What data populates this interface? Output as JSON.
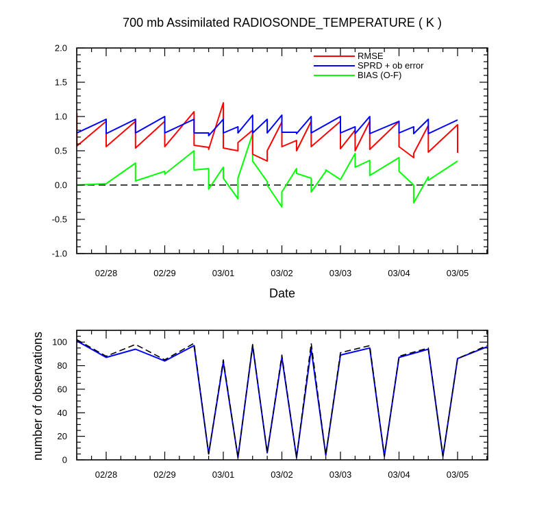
{
  "chart_data": [
    {
      "type": "line",
      "title": "700 mb Assimilated RADIOSONDE_TEMPERATURE ( K )",
      "xlabel": "Date",
      "ylabel": "",
      "x_tick_labels": [
        "02/28",
        "02/29",
        "03/01",
        "03/02",
        "03/03",
        "03/04",
        "03/05"
      ],
      "ylim": [
        -1.0,
        2.0
      ],
      "y_ticks": [
        "-1.0",
        "-0.5",
        "0.0",
        "0.5",
        "1.0",
        "1.5",
        "2.0"
      ],
      "reference_line": {
        "y": 0.0,
        "style": "dashed",
        "color": "#000000"
      },
      "legend_position": "top-right",
      "series": [
        {
          "name": "RMSE",
          "color": "#ff0000",
          "points": [
            [
              -0.5,
              1.05
            ],
            [
              -0.5,
              0.57
            ],
            [
              0.0,
              0.93
            ],
            [
              0.0,
              0.56
            ],
            [
              0.5,
              0.93
            ],
            [
              0.5,
              0.54
            ],
            [
              1.0,
              0.93
            ],
            [
              1.0,
              0.56
            ],
            [
              1.5,
              1.07
            ],
            [
              1.5,
              0.58
            ],
            [
              1.75,
              0.55
            ],
            [
              1.75,
              0.52
            ],
            [
              2.0,
              1.2
            ],
            [
              2.0,
              0.54
            ],
            [
              2.25,
              0.5
            ],
            [
              2.25,
              0.62
            ],
            [
              2.5,
              0.8
            ],
            [
              2.5,
              0.45
            ],
            [
              2.75,
              0.35
            ],
            [
              2.75,
              0.5
            ],
            [
              3.0,
              0.92
            ],
            [
              3.0,
              0.56
            ],
            [
              3.25,
              0.65
            ],
            [
              3.25,
              0.5
            ],
            [
              3.5,
              0.93
            ],
            [
              3.5,
              0.56
            ],
            [
              4.0,
              0.93
            ],
            [
              4.0,
              0.53
            ],
            [
              4.25,
              0.8
            ],
            [
              4.25,
              0.5
            ],
            [
              4.5,
              0.93
            ],
            [
              4.5,
              0.52
            ],
            [
              5.0,
              0.93
            ],
            [
              5.0,
              0.56
            ],
            [
              5.25,
              0.4
            ],
            [
              5.25,
              0.46
            ],
            [
              5.5,
              0.87
            ],
            [
              5.5,
              0.48
            ],
            [
              6.0,
              0.88
            ],
            [
              6.0,
              0.47
            ]
          ]
        },
        {
          "name": "SPRD + ob error",
          "color": "#0000ff",
          "points": [
            [
              -0.5,
              0.76
            ],
            [
              0.0,
              0.96
            ],
            [
              0.0,
              0.75
            ],
            [
              0.5,
              0.96
            ],
            [
              0.5,
              0.76
            ],
            [
              1.0,
              1.0
            ],
            [
              1.0,
              0.76
            ],
            [
              1.5,
              0.96
            ],
            [
              1.5,
              0.76
            ],
            [
              1.75,
              0.76
            ],
            [
              1.75,
              0.72
            ],
            [
              2.0,
              0.96
            ],
            [
              2.0,
              0.76
            ],
            [
              2.25,
              0.85
            ],
            [
              2.25,
              0.76
            ],
            [
              2.5,
              1.02
            ],
            [
              2.5,
              0.76
            ],
            [
              2.75,
              0.96
            ],
            [
              2.75,
              0.76
            ],
            [
              3.0,
              1.02
            ],
            [
              3.0,
              0.77
            ],
            [
              3.25,
              0.77
            ],
            [
              3.25,
              0.75
            ],
            [
              3.5,
              1.0
            ],
            [
              3.5,
              0.76
            ],
            [
              4.0,
              1.0
            ],
            [
              4.0,
              0.76
            ],
            [
              4.25,
              0.85
            ],
            [
              4.25,
              0.75
            ],
            [
              4.5,
              1.0
            ],
            [
              4.5,
              0.75
            ],
            [
              5.0,
              0.93
            ],
            [
              5.0,
              0.76
            ],
            [
              5.25,
              0.85
            ],
            [
              5.25,
              0.75
            ],
            [
              5.5,
              0.96
            ],
            [
              5.5,
              0.75
            ],
            [
              6.0,
              0.95
            ]
          ]
        },
        {
          "name": "BIAS (O-F)",
          "color": "#00ff00",
          "points": [
            [
              -0.5,
              0.0
            ],
            [
              0.0,
              0.02
            ],
            [
              0.5,
              0.32
            ],
            [
              0.5,
              0.06
            ],
            [
              1.0,
              0.2
            ],
            [
              1.0,
              0.16
            ],
            [
              1.5,
              0.5
            ],
            [
              1.5,
              0.22
            ],
            [
              1.75,
              0.24
            ],
            [
              1.75,
              -0.06
            ],
            [
              2.0,
              0.26
            ],
            [
              2.0,
              0.1
            ],
            [
              2.25,
              -0.2
            ],
            [
              2.25,
              0.1
            ],
            [
              2.5,
              0.75
            ],
            [
              2.5,
              0.35
            ],
            [
              2.75,
              0.05
            ],
            [
              2.75,
              0.0
            ],
            [
              3.0,
              -0.32
            ],
            [
              3.0,
              -0.1
            ],
            [
              3.25,
              0.24
            ],
            [
              3.25,
              0.17
            ],
            [
              3.5,
              0.1
            ],
            [
              3.5,
              -0.1
            ],
            [
              3.75,
              0.2
            ],
            [
              3.75,
              0.22
            ],
            [
              4.0,
              0.08
            ],
            [
              4.25,
              0.46
            ],
            [
              4.25,
              0.26
            ],
            [
              4.5,
              0.36
            ],
            [
              4.5,
              0.14
            ],
            [
              5.0,
              0.4
            ],
            [
              5.0,
              0.2
            ],
            [
              5.25,
              0.0
            ],
            [
              5.25,
              -0.26
            ],
            [
              5.5,
              0.12
            ],
            [
              5.5,
              0.07
            ],
            [
              6.0,
              0.35
            ]
          ]
        }
      ]
    },
    {
      "type": "line",
      "title": "",
      "xlabel": "",
      "ylabel": "number of observations",
      "x_tick_labels": [
        "02/28",
        "02/29",
        "03/01",
        "03/02",
        "03/03",
        "03/04",
        "03/05"
      ],
      "ylim": [
        0,
        110
      ],
      "y_ticks": [
        "0",
        "20",
        "40",
        "60",
        "80",
        "100"
      ],
      "series": [
        {
          "color": "#0000ff",
          "style": "solid",
          "points": [
            [
              -0.5,
              101
            ],
            [
              0.0,
              87
            ],
            [
              0.5,
              94
            ],
            [
              1.0,
              84
            ],
            [
              1.5,
              97
            ],
            [
              1.75,
              5
            ],
            [
              2.0,
              83
            ],
            [
              2.25,
              2
            ],
            [
              2.5,
              97
            ],
            [
              2.75,
              6
            ],
            [
              3.0,
              87
            ],
            [
              3.25,
              2
            ],
            [
              3.5,
              94
            ],
            [
              3.75,
              4
            ],
            [
              4.0,
              89
            ],
            [
              4.5,
              95
            ],
            [
              4.75,
              3
            ],
            [
              5.0,
              87
            ],
            [
              5.5,
              94
            ],
            [
              5.75,
              3
            ],
            [
              6.0,
              86
            ],
            [
              6.5,
              96
            ]
          ]
        },
        {
          "color": "#000000",
          "style": "dashed",
          "points": [
            [
              -0.5,
              102
            ],
            [
              0.0,
              88
            ],
            [
              0.5,
              98
            ],
            [
              1.0,
              85
            ],
            [
              1.5,
              99
            ],
            [
              1.75,
              5
            ],
            [
              2.0,
              85
            ],
            [
              2.25,
              2
            ],
            [
              2.5,
              98
            ],
            [
              2.75,
              6
            ],
            [
              3.0,
              89
            ],
            [
              3.25,
              2
            ],
            [
              3.5,
              99
            ],
            [
              3.75,
              4
            ],
            [
              4.0,
              91
            ],
            [
              4.5,
              97
            ],
            [
              4.75,
              3
            ],
            [
              5.0,
              88
            ],
            [
              5.5,
              95
            ],
            [
              5.75,
              3
            ],
            [
              6.0,
              86
            ],
            [
              6.5,
              97
            ]
          ]
        }
      ]
    }
  ]
}
